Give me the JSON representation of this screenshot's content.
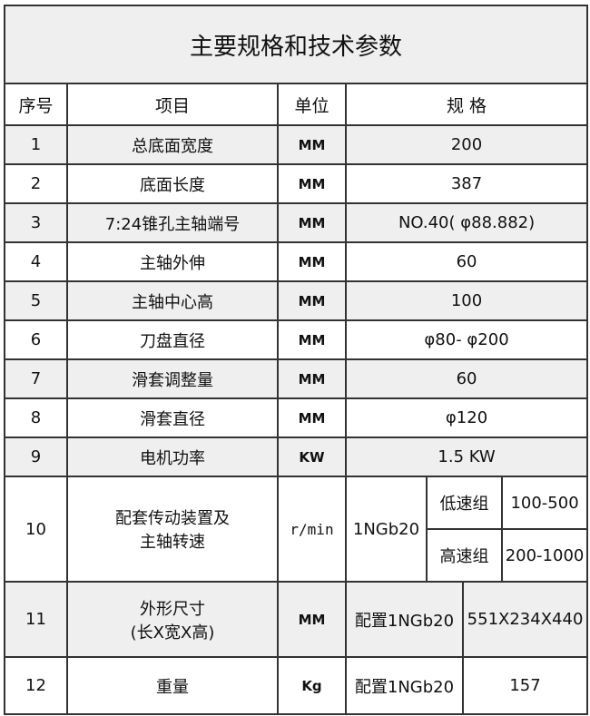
{
  "title": "主要规格和技术参数",
  "headers": [
    "序号",
    "项目",
    "单位",
    "规 格"
  ],
  "rows": [
    {
      "no": "1",
      "item": "总底面宽度",
      "unit": "MM",
      "spec": "200"
    },
    {
      "no": "2",
      "item": "底面长度",
      "unit": "MM",
      "spec": "387"
    },
    {
      "no": "3",
      "item": "7:24锥孔主轴端号",
      "unit": "MM",
      "spec": "NO.40( φ88.882)"
    },
    {
      "no": "4",
      "item": "主轴外伸",
      "unit": "MM",
      "spec": "60"
    },
    {
      "no": "5",
      "item": "主轴中心高",
      "unit": "MM",
      "spec": "100"
    },
    {
      "no": "6",
      "item": "刀盘直径",
      "unit": "MM",
      "spec": "φ80- φ200"
    },
    {
      "no": "7",
      "item": "滑套调整量",
      "unit": "MM",
      "spec": "60"
    },
    {
      "no": "8",
      "item": "滑套直径",
      "unit": "MM",
      "spec": "φ120"
    },
    {
      "no": "9",
      "item": "电机功率",
      "unit": "KW",
      "spec": "1.5 KW"
    }
  ],
  "row10": {
    "no": "10",
    "item_line1": "配套传动装置及",
    "item_line2": "主轴转速",
    "unit": "r/min",
    "model": "1NGb20",
    "low_label": "低速组",
    "low_value": "100-500",
    "high_label": "高速组",
    "high_value": "200-1000"
  },
  "row11": {
    "no": "11",
    "item_line1": "外形尺寸",
    "item_line2": "(长X宽X高)",
    "unit": "MM",
    "config": "配置1NGb20",
    "value": "551X234X440"
  },
  "row12": {
    "no": "12",
    "item": "重量",
    "unit": "Kg",
    "config": "配置1NGb20",
    "value": "157"
  }
}
